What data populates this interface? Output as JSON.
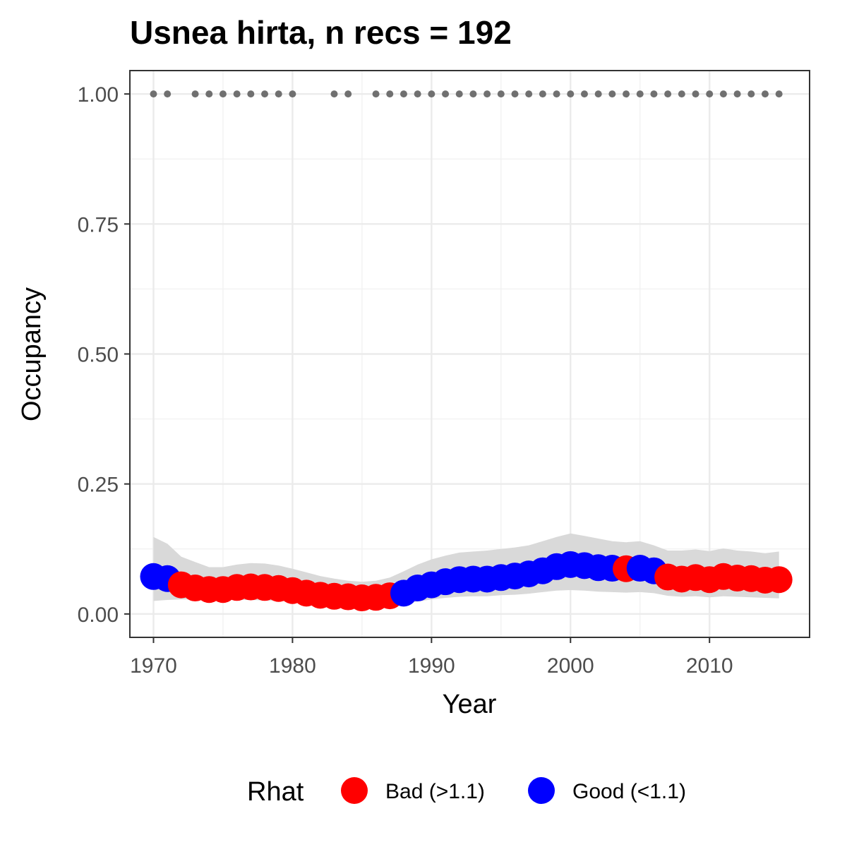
{
  "chart_data": {
    "type": "scatter",
    "title": "Usnea hirta, n recs = 192",
    "xlabel": "Year",
    "ylabel": "Occupancy",
    "xlim": [
      1968.3,
      2017.2
    ],
    "ylim": [
      -0.045,
      1.045
    ],
    "x_ticks": [
      1970,
      1980,
      1990,
      2000,
      2010
    ],
    "x_tick_labels": [
      "1970",
      "1980",
      "1990",
      "2000",
      "2010"
    ],
    "y_ticks": [
      0,
      0.25,
      0.5,
      0.75,
      1.0
    ],
    "y_tick_labels": [
      "0.00",
      "0.25",
      "0.50",
      "0.75",
      "1.00"
    ],
    "grid": true,
    "legend": {
      "title": "Rhat",
      "position": "bottom",
      "entries": [
        {
          "label": "Bad (>1.1)",
          "color": "#ff0000"
        },
        {
          "label": "Good (<1.1)",
          "color": "#0000ff"
        }
      ]
    },
    "colors": {
      "Bad": "#ff0000",
      "Good": "#0000ff",
      "ribbon": "#d9d9d9",
      "records": "#707070"
    },
    "series": [
      {
        "name": "Occupancy",
        "points": [
          {
            "year": 1970,
            "mean": 0.072,
            "lower": 0.025,
            "upper": 0.148,
            "rhat": "Good"
          },
          {
            "year": 1971,
            "mean": 0.068,
            "lower": 0.027,
            "upper": 0.135,
            "rhat": "Good"
          },
          {
            "year": 1972,
            "mean": 0.056,
            "lower": 0.028,
            "upper": 0.11,
            "rhat": "Bad"
          },
          {
            "year": 1973,
            "mean": 0.05,
            "lower": 0.028,
            "upper": 0.1,
            "rhat": "Bad"
          },
          {
            "year": 1974,
            "mean": 0.047,
            "lower": 0.027,
            "upper": 0.09,
            "rhat": "Bad"
          },
          {
            "year": 1975,
            "mean": 0.047,
            "lower": 0.027,
            "upper": 0.09,
            "rhat": "Bad"
          },
          {
            "year": 1976,
            "mean": 0.051,
            "lower": 0.027,
            "upper": 0.095,
            "rhat": "Bad"
          },
          {
            "year": 1977,
            "mean": 0.052,
            "lower": 0.027,
            "upper": 0.098,
            "rhat": "Bad"
          },
          {
            "year": 1978,
            "mean": 0.051,
            "lower": 0.026,
            "upper": 0.097,
            "rhat": "Bad"
          },
          {
            "year": 1979,
            "mean": 0.049,
            "lower": 0.025,
            "upper": 0.093,
            "rhat": "Bad"
          },
          {
            "year": 1980,
            "mean": 0.045,
            "lower": 0.023,
            "upper": 0.087,
            "rhat": "Bad"
          },
          {
            "year": 1981,
            "mean": 0.04,
            "lower": 0.021,
            "upper": 0.08,
            "rhat": "Bad"
          },
          {
            "year": 1982,
            "mean": 0.036,
            "lower": 0.019,
            "upper": 0.073,
            "rhat": "Bad"
          },
          {
            "year": 1983,
            "mean": 0.034,
            "lower": 0.017,
            "upper": 0.068,
            "rhat": "Bad"
          },
          {
            "year": 1984,
            "mean": 0.033,
            "lower": 0.016,
            "upper": 0.064,
            "rhat": "Bad"
          },
          {
            "year": 1985,
            "mean": 0.031,
            "lower": 0.015,
            "upper": 0.062,
            "rhat": "Bad"
          },
          {
            "year": 1986,
            "mean": 0.032,
            "lower": 0.015,
            "upper": 0.064,
            "rhat": "Bad"
          },
          {
            "year": 1987,
            "mean": 0.035,
            "lower": 0.016,
            "upper": 0.07,
            "rhat": "Bad"
          },
          {
            "year": 1988,
            "mean": 0.04,
            "lower": 0.019,
            "upper": 0.082,
            "rhat": "Good"
          },
          {
            "year": 1989,
            "mean": 0.05,
            "lower": 0.024,
            "upper": 0.095,
            "rhat": "Good"
          },
          {
            "year": 1990,
            "mean": 0.056,
            "lower": 0.028,
            "upper": 0.105,
            "rhat": "Good"
          },
          {
            "year": 1991,
            "mean": 0.062,
            "lower": 0.031,
            "upper": 0.112,
            "rhat": "Good"
          },
          {
            "year": 1992,
            "mean": 0.066,
            "lower": 0.033,
            "upper": 0.118,
            "rhat": "Good"
          },
          {
            "year": 1993,
            "mean": 0.067,
            "lower": 0.034,
            "upper": 0.12,
            "rhat": "Good"
          },
          {
            "year": 1994,
            "mean": 0.067,
            "lower": 0.034,
            "upper": 0.122,
            "rhat": "Good"
          },
          {
            "year": 1995,
            "mean": 0.07,
            "lower": 0.036,
            "upper": 0.125,
            "rhat": "Good"
          },
          {
            "year": 1996,
            "mean": 0.073,
            "lower": 0.037,
            "upper": 0.128,
            "rhat": "Good"
          },
          {
            "year": 1997,
            "mean": 0.077,
            "lower": 0.039,
            "upper": 0.132,
            "rhat": "Good"
          },
          {
            "year": 1998,
            "mean": 0.083,
            "lower": 0.042,
            "upper": 0.14,
            "rhat": "Good"
          },
          {
            "year": 1999,
            "mean": 0.091,
            "lower": 0.045,
            "upper": 0.148,
            "rhat": "Good"
          },
          {
            "year": 2000,
            "mean": 0.095,
            "lower": 0.046,
            "upper": 0.155,
            "rhat": "Good"
          },
          {
            "year": 2001,
            "mean": 0.093,
            "lower": 0.045,
            "upper": 0.15,
            "rhat": "Good"
          },
          {
            "year": 2002,
            "mean": 0.089,
            "lower": 0.043,
            "upper": 0.145,
            "rhat": "Good"
          },
          {
            "year": 2003,
            "mean": 0.088,
            "lower": 0.042,
            "upper": 0.14,
            "rhat": "Good"
          },
          {
            "year": 2004,
            "mean": 0.087,
            "lower": 0.041,
            "upper": 0.138,
            "rhat": "Bad"
          },
          {
            "year": 2005,
            "mean": 0.088,
            "lower": 0.042,
            "upper": 0.14,
            "rhat": "Good"
          },
          {
            "year": 2006,
            "mean": 0.083,
            "lower": 0.04,
            "upper": 0.132,
            "rhat": "Good"
          },
          {
            "year": 2007,
            "mean": 0.071,
            "lower": 0.035,
            "upper": 0.122,
            "rhat": "Bad"
          },
          {
            "year": 2008,
            "mean": 0.067,
            "lower": 0.033,
            "upper": 0.122,
            "rhat": "Bad"
          },
          {
            "year": 2009,
            "mean": 0.07,
            "lower": 0.034,
            "upper": 0.124,
            "rhat": "Bad"
          },
          {
            "year": 2010,
            "mean": 0.066,
            "lower": 0.032,
            "upper": 0.121,
            "rhat": "Bad"
          },
          {
            "year": 2011,
            "mean": 0.072,
            "lower": 0.034,
            "upper": 0.126,
            "rhat": "Bad"
          },
          {
            "year": 2012,
            "mean": 0.069,
            "lower": 0.033,
            "upper": 0.122,
            "rhat": "Bad"
          },
          {
            "year": 2013,
            "mean": 0.068,
            "lower": 0.032,
            "upper": 0.12,
            "rhat": "Bad"
          },
          {
            "year": 2014,
            "mean": 0.065,
            "lower": 0.031,
            "upper": 0.117,
            "rhat": "Bad"
          },
          {
            "year": 2015,
            "mean": 0.066,
            "lower": 0.03,
            "upper": 0.12,
            "rhat": "Bad"
          }
        ]
      }
    ],
    "record_years": {
      "y": 1.0,
      "years": [
        1970,
        1971,
        1973,
        1974,
        1975,
        1976,
        1977,
        1978,
        1979,
        1980,
        1983,
        1984,
        1986,
        1987,
        1988,
        1989,
        1990,
        1991,
        1992,
        1993,
        1994,
        1995,
        1996,
        1997,
        1998,
        1999,
        2000,
        2001,
        2002,
        2003,
        2004,
        2005,
        2006,
        2007,
        2008,
        2009,
        2010,
        2011,
        2012,
        2013,
        2014,
        2015
      ]
    }
  }
}
